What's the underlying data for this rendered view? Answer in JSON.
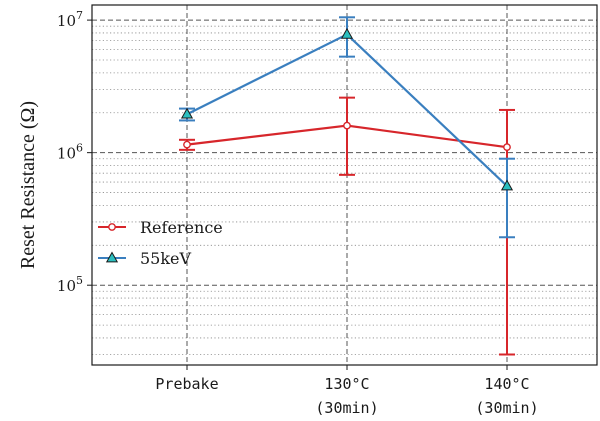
{
  "chart_data": {
    "type": "line",
    "title": "",
    "xlabel": "",
    "ylabel": "Reset Resistance (Ω)",
    "yscale": "log",
    "ylim": [
      25000,
      13000000
    ],
    "y_ticks": [
      {
        "value": 100000,
        "base": "10",
        "exp": "5"
      },
      {
        "value": 1000000,
        "base": "10",
        "exp": "6"
      },
      {
        "value": 10000000,
        "base": "10",
        "exp": "7"
      }
    ],
    "categories": [
      {
        "line1": "Prebake",
        "line2": ""
      },
      {
        "line1": "130°C",
        "line2": "(30min)"
      },
      {
        "line1": "140°C",
        "line2": "(30min)"
      }
    ],
    "grid": true,
    "legend_position": "center-left",
    "series": [
      {
        "name": "Reference",
        "color": "#d7262b",
        "marker": "circle",
        "values": [
          1150000,
          1600000,
          1100000
        ],
        "err_low": [
          1050000,
          680000,
          30000
        ],
        "err_high": [
          1250000,
          2600000,
          2100000
        ]
      },
      {
        "name": "55keV",
        "color": "#3a7fbf",
        "marker": "triangle",
        "values": [
          1950000,
          7800000,
          560000
        ],
        "err_low": [
          1750000,
          5300000,
          230000
        ],
        "err_high": [
          2150000,
          10500000,
          900000
        ]
      }
    ]
  }
}
